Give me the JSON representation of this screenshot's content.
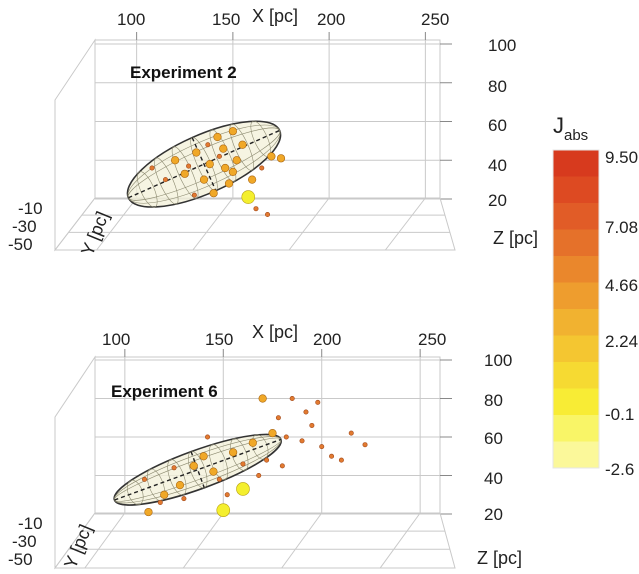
{
  "chart_data": [
    {
      "type": "scatter3d",
      "title": "Experiment 2",
      "xlabel": "X [pc]",
      "ylabel": "Y [pc]",
      "zlabel": "Z [pc]",
      "x_ticks": [
        "100",
        "150",
        "200",
        "250"
      ],
      "y_ticks": [
        "-10",
        "-30",
        "-50"
      ],
      "z_ticks": [
        "100",
        "80",
        "60",
        "40",
        "20"
      ],
      "xlim": [
        95,
        255
      ],
      "zlim": [
        20,
        100
      ],
      "grid": true,
      "ellipsoid": {
        "center_x": 135,
        "center_z": 38,
        "half_length_x": 43,
        "half_height_z": 15
      },
      "points": [
        {
          "x": 158,
          "z": 21,
          "r": 3
        },
        {
          "x": 170,
          "z": 42,
          "r": 2
        },
        {
          "x": 175,
          "z": 41,
          "r": 2
        },
        {
          "x": 145,
          "z": 46,
          "r": 2
        },
        {
          "x": 131,
          "z": 44,
          "r": 2
        },
        {
          "x": 138,
          "z": 38,
          "r": 2
        },
        {
          "x": 150,
          "z": 34,
          "r": 2
        },
        {
          "x": 160,
          "z": 30,
          "r": 2
        },
        {
          "x": 120,
          "z": 40,
          "r": 2
        },
        {
          "x": 125,
          "z": 33,
          "r": 2
        },
        {
          "x": 142,
          "z": 52,
          "r": 2
        },
        {
          "x": 150,
          "z": 55,
          "r": 2
        },
        {
          "x": 155,
          "z": 48,
          "r": 2
        },
        {
          "x": 135,
          "z": 30,
          "r": 2
        },
        {
          "x": 148,
          "z": 28,
          "r": 2
        },
        {
          "x": 140,
          "z": 23,
          "r": 2
        },
        {
          "x": 130,
          "z": 22,
          "r": 1
        },
        {
          "x": 165,
          "z": 36,
          "r": 1
        },
        {
          "x": 152,
          "z": 40,
          "r": 2
        },
        {
          "x": 146,
          "z": 36,
          "r": 2
        },
        {
          "x": 162,
          "z": 15,
          "r": 1
        },
        {
          "x": 168,
          "z": 12,
          "r": 1
        },
        {
          "x": 108,
          "z": 36,
          "r": 1
        },
        {
          "x": 115,
          "z": 30,
          "r": 1
        },
        {
          "x": 137,
          "z": 48,
          "r": 1
        },
        {
          "x": 143,
          "z": 42,
          "r": 1
        },
        {
          "x": 127,
          "z": 37,
          "r": 1
        }
      ]
    },
    {
      "type": "scatter3d",
      "title": "Experiment 6",
      "xlabel": "X [pc]",
      "ylabel": "Y [pc]",
      "zlabel": "Z [pc]",
      "x_ticks": [
        "100",
        "150",
        "200",
        "250"
      ],
      "y_ticks": [
        "-10",
        "-30",
        "-50"
      ],
      "z_ticks": [
        "100",
        "80",
        "60",
        "40",
        "20"
      ],
      "xlim": [
        95,
        255
      ],
      "zlim": [
        20,
        100
      ],
      "grid": true,
      "ellipsoid": {
        "center_x": 137,
        "center_z": 43,
        "half_length_x": 45,
        "half_height_z": 10
      },
      "points": [
        {
          "x": 150,
          "z": 22,
          "r": 3
        },
        {
          "x": 160,
          "z": 33,
          "r": 3
        },
        {
          "x": 128,
          "z": 35,
          "r": 2
        },
        {
          "x": 170,
          "z": 80,
          "r": 2
        },
        {
          "x": 112,
          "z": 21,
          "r": 2
        },
        {
          "x": 120,
          "z": 30,
          "r": 2
        },
        {
          "x": 140,
          "z": 50,
          "r": 2
        },
        {
          "x": 145,
          "z": 42,
          "r": 2
        },
        {
          "x": 135,
          "z": 45,
          "r": 2
        },
        {
          "x": 155,
          "z": 52,
          "r": 2
        },
        {
          "x": 165,
          "z": 57,
          "r": 2
        },
        {
          "x": 175,
          "z": 62,
          "r": 2
        },
        {
          "x": 182,
          "z": 60,
          "r": 1
        },
        {
          "x": 190,
          "z": 58,
          "r": 1
        },
        {
          "x": 195,
          "z": 66,
          "r": 1
        },
        {
          "x": 200,
          "z": 55,
          "r": 1
        },
        {
          "x": 205,
          "z": 50,
          "r": 1
        },
        {
          "x": 210,
          "z": 48,
          "r": 1
        },
        {
          "x": 185,
          "z": 80,
          "r": 1
        },
        {
          "x": 192,
          "z": 73,
          "r": 1
        },
        {
          "x": 178,
          "z": 70,
          "r": 1
        },
        {
          "x": 168,
          "z": 40,
          "r": 1
        },
        {
          "x": 160,
          "z": 46,
          "r": 1
        },
        {
          "x": 130,
          "z": 28,
          "r": 1
        },
        {
          "x": 118,
          "z": 26,
          "r": 1
        },
        {
          "x": 148,
          "z": 38,
          "r": 1
        },
        {
          "x": 172,
          "z": 48,
          "r": 1
        },
        {
          "x": 142,
          "z": 60,
          "r": 1
        },
        {
          "x": 180,
          "z": 45,
          "r": 1
        },
        {
          "x": 198,
          "z": 78,
          "r": 1
        },
        {
          "x": 110,
          "z": 38,
          "r": 1
        },
        {
          "x": 125,
          "z": 44,
          "r": 1
        },
        {
          "x": 152,
          "z": 30,
          "r": 1
        },
        {
          "x": 215,
          "z": 62,
          "r": 1
        },
        {
          "x": 222,
          "z": 56,
          "r": 1
        }
      ]
    }
  ],
  "colorbar": {
    "label_main": "J",
    "label_sub": "abs",
    "ticks": [
      "9.50",
      "7.08",
      "4.66",
      "2.24",
      "-0.1",
      "-2.6"
    ],
    "colors": [
      "#d73a1e",
      "#dd4a22",
      "#e15c27",
      "#e5712a",
      "#ea872c",
      "#ee9d2e",
      "#f1b230",
      "#f4c631",
      "#f6da32",
      "#f8ec35",
      "#f9f567",
      "#fbf89a"
    ]
  }
}
